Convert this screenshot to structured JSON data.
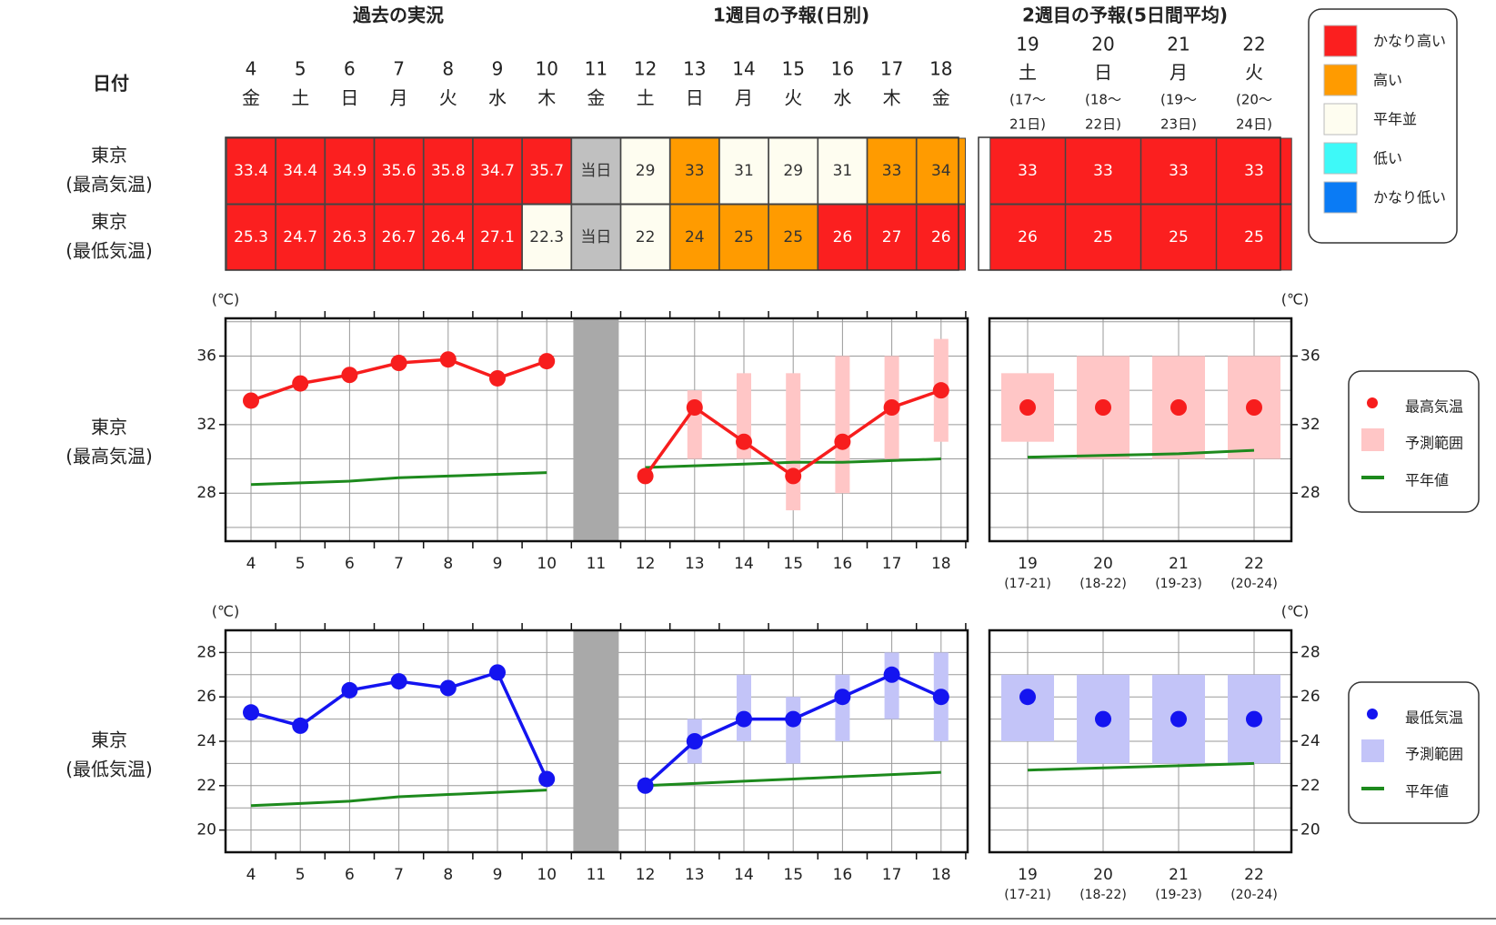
{
  "header": {
    "section_past": "過去の実況",
    "section_week1": "1週目の予報(日別)",
    "section_week2": "2週目の予報(5日間平均)",
    "row_label_date": "日付",
    "row_label_max": [
      "東京",
      "(最高気温)"
    ],
    "row_label_min": [
      "東京",
      "(最低気温)"
    ]
  },
  "days": [
    {
      "day": "4",
      "wd": "金"
    },
    {
      "day": "5",
      "wd": "土"
    },
    {
      "day": "6",
      "wd": "日"
    },
    {
      "day": "7",
      "wd": "月"
    },
    {
      "day": "8",
      "wd": "火"
    },
    {
      "day": "9",
      "wd": "水"
    },
    {
      "day": "10",
      "wd": "木"
    },
    {
      "day": "11",
      "wd": "金"
    },
    {
      "day": "12",
      "wd": "土"
    },
    {
      "day": "13",
      "wd": "日"
    },
    {
      "day": "14",
      "wd": "月"
    },
    {
      "day": "15",
      "wd": "火"
    },
    {
      "day": "16",
      "wd": "水"
    },
    {
      "day": "17",
      "wd": "木"
    },
    {
      "day": "18",
      "wd": "金"
    }
  ],
  "week2_days": [
    {
      "day": "19",
      "wd": "土",
      "range1": "(17〜",
      "range2": "21日)",
      "axis_range": "(17-21)"
    },
    {
      "day": "20",
      "wd": "日",
      "range1": "(18〜",
      "range2": "22日)",
      "axis_range": "(18-22)"
    },
    {
      "day": "21",
      "wd": "月",
      "range1": "(19〜",
      "range2": "23日)",
      "axis_range": "(19-23)"
    },
    {
      "day": "22",
      "wd": "火",
      "range1": "(20〜",
      "range2": "24日)",
      "axis_range": "(20-24)"
    }
  ],
  "table": {
    "max": [
      {
        "text": "33.4",
        "level": "very_high"
      },
      {
        "text": "34.4",
        "level": "very_high"
      },
      {
        "text": "34.9",
        "level": "very_high"
      },
      {
        "text": "35.6",
        "level": "very_high"
      },
      {
        "text": "35.8",
        "level": "very_high"
      },
      {
        "text": "34.7",
        "level": "very_high"
      },
      {
        "text": "35.7",
        "level": "very_high"
      },
      {
        "text": "当日",
        "level": "today"
      },
      {
        "text": "29",
        "level": "normal"
      },
      {
        "text": "33",
        "level": "high"
      },
      {
        "text": "31",
        "level": "normal"
      },
      {
        "text": "29",
        "level": "normal"
      },
      {
        "text": "31",
        "level": "normal"
      },
      {
        "text": "33",
        "level": "high"
      },
      {
        "text": "34",
        "level": "high"
      }
    ],
    "min": [
      {
        "text": "25.3",
        "level": "very_high"
      },
      {
        "text": "24.7",
        "level": "very_high"
      },
      {
        "text": "26.3",
        "level": "very_high"
      },
      {
        "text": "26.7",
        "level": "very_high"
      },
      {
        "text": "26.4",
        "level": "very_high"
      },
      {
        "text": "27.1",
        "level": "very_high"
      },
      {
        "text": "22.3",
        "level": "normal"
      },
      {
        "text": "当日",
        "level": "today"
      },
      {
        "text": "22",
        "level": "normal"
      },
      {
        "text": "24",
        "level": "high"
      },
      {
        "text": "25",
        "level": "high"
      },
      {
        "text": "25",
        "level": "high"
      },
      {
        "text": "26",
        "level": "very_high"
      },
      {
        "text": "27",
        "level": "very_high"
      },
      {
        "text": "26",
        "level": "very_high"
      }
    ],
    "week2_max": [
      {
        "text": "33",
        "level": "very_high"
      },
      {
        "text": "33",
        "level": "very_high"
      },
      {
        "text": "33",
        "level": "very_high"
      },
      {
        "text": "33",
        "level": "very_high"
      }
    ],
    "week2_min": [
      {
        "text": "26",
        "level": "very_high"
      },
      {
        "text": "25",
        "level": "very_high"
      },
      {
        "text": "25",
        "level": "very_high"
      },
      {
        "text": "25",
        "level": "very_high"
      }
    ]
  },
  "levels": {
    "very_high": {
      "label": "かなり高い",
      "color": "#fb1f1f",
      "text_color": "#ffffff"
    },
    "high": {
      "label": "高い",
      "color": "#ff9b00",
      "text_color": "#333333"
    },
    "normal": {
      "label": "平年並",
      "color": "#fefdf0",
      "text_color": "#333333"
    },
    "low": {
      "label": "低い",
      "color": "#3ef9f8",
      "text_color": "#333333"
    },
    "very_low": {
      "label": "かなり低い",
      "color": "#0a7bf5",
      "text_color": "#ffffff"
    },
    "today": {
      "label": "",
      "color": "#c0c0c0",
      "text_color": "#333333"
    }
  },
  "legend_order": [
    "very_high",
    "high",
    "normal",
    "low",
    "very_low"
  ],
  "chart_data": [
    {
      "type": "line",
      "row_label": [
        "東京",
        "(最高気温)"
      ],
      "unit": "(℃)",
      "ylim": [
        25.2,
        38.2
      ],
      "yticks": [
        28,
        32,
        36
      ],
      "grid": true,
      "x": [
        "4",
        "5",
        "6",
        "7",
        "8",
        "9",
        "10",
        "11",
        "12",
        "13",
        "14",
        "15",
        "16",
        "17",
        "18"
      ],
      "observed": [
        33.4,
        34.4,
        34.9,
        35.6,
        35.8,
        34.7,
        35.7
      ],
      "forecast": [
        29,
        33,
        31,
        29,
        31,
        33,
        34
      ],
      "forecast_range": [
        [
          29,
          29
        ],
        [
          30,
          34
        ],
        [
          30,
          35
        ],
        [
          27,
          35
        ],
        [
          28,
          36
        ],
        [
          30,
          36
        ],
        [
          31,
          37
        ]
      ],
      "normal_past": [
        28.5,
        28.6,
        28.7,
        28.9,
        29.0,
        29.1,
        29.2
      ],
      "normal_forecast": [
        29.5,
        29.6,
        29.7,
        29.8,
        29.8,
        29.9,
        30.0
      ],
      "week2_x": [
        "19",
        "20",
        "21",
        "22"
      ],
      "week2_values": [
        33,
        33,
        33,
        33
      ],
      "week2_range": [
        [
          31,
          35
        ],
        [
          30,
          36
        ],
        [
          30,
          36
        ],
        [
          30,
          36
        ]
      ],
      "week2_normal": [
        30.1,
        30.2,
        30.3,
        30.5
      ],
      "color": "#f71d1d",
      "range_color": "#ffc6c6",
      "normal_color": "#1d8a1d",
      "legend": {
        "point": "最高気温",
        "range": "予測範囲",
        "normal": "平年値"
      }
    },
    {
      "type": "line",
      "row_label": [
        "東京",
        "(最低気温)"
      ],
      "unit": "(℃)",
      "ylim": [
        19.0,
        29.0
      ],
      "yticks": [
        20,
        22,
        24,
        26,
        28
      ],
      "grid": true,
      "x": [
        "4",
        "5",
        "6",
        "7",
        "8",
        "9",
        "10",
        "11",
        "12",
        "13",
        "14",
        "15",
        "16",
        "17",
        "18"
      ],
      "observed": [
        25.3,
        24.7,
        26.3,
        26.7,
        26.4,
        27.1,
        22.3
      ],
      "forecast": [
        22,
        24,
        25,
        25,
        26,
        27,
        26
      ],
      "forecast_range": [
        [
          22,
          22
        ],
        [
          23,
          25
        ],
        [
          24,
          27
        ],
        [
          23,
          26
        ],
        [
          24,
          27
        ],
        [
          25,
          28
        ],
        [
          24,
          28
        ]
      ],
      "normal_past": [
        21.1,
        21.2,
        21.3,
        21.5,
        21.6,
        21.7,
        21.8
      ],
      "normal_forecast": [
        22.0,
        22.1,
        22.2,
        22.3,
        22.4,
        22.5,
        22.6
      ],
      "week2_x": [
        "19",
        "20",
        "21",
        "22"
      ],
      "week2_values": [
        26,
        25,
        25,
        25
      ],
      "week2_range": [
        [
          24,
          27
        ],
        [
          23,
          27
        ],
        [
          23,
          27
        ],
        [
          23,
          27
        ]
      ],
      "week2_normal": [
        22.7,
        22.8,
        22.9,
        23.0
      ],
      "color": "#1414f0",
      "range_color": "#c3c4f8",
      "normal_color": "#1d8a1d",
      "legend": {
        "point": "最低気温",
        "range": "予測範囲",
        "normal": "平年値"
      }
    }
  ]
}
